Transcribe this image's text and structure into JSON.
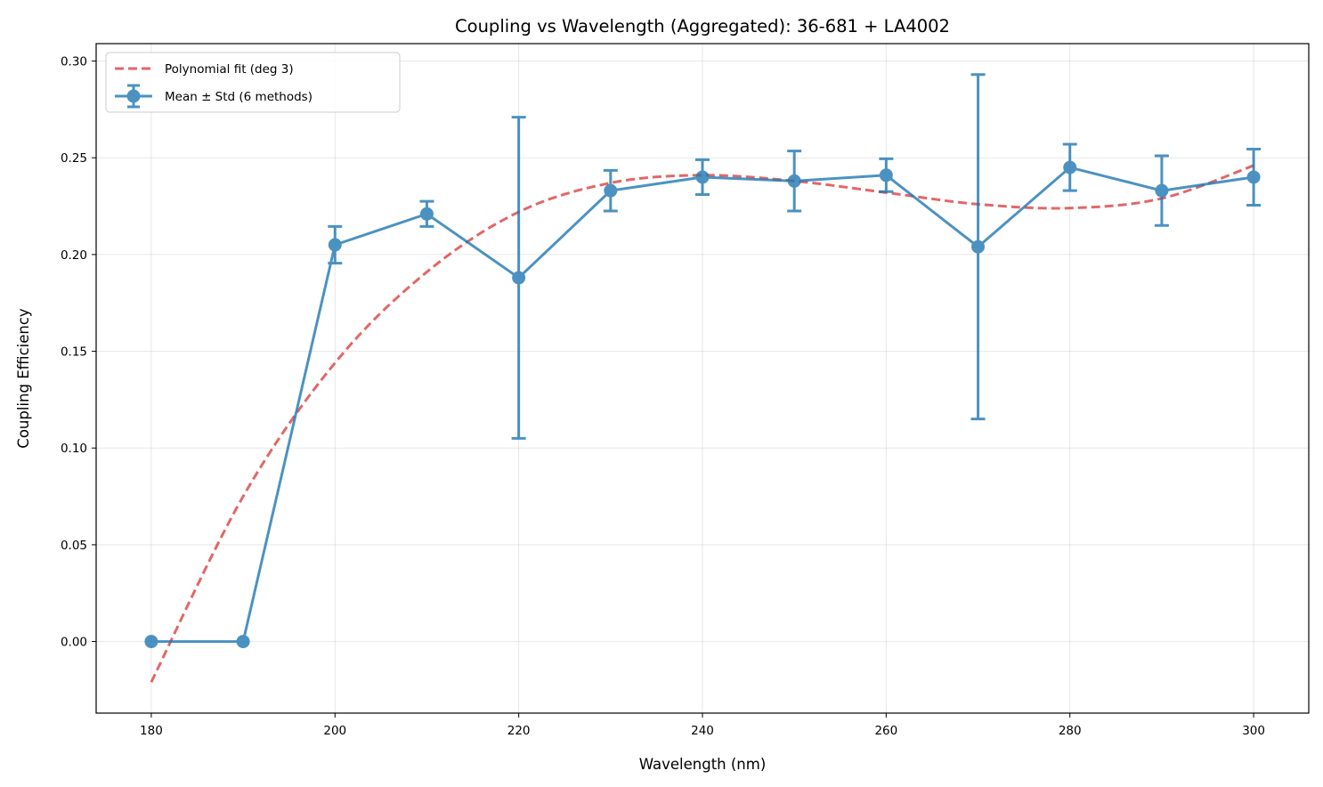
{
  "chart_data": {
    "type": "line",
    "title": "Coupling vs Wavelength (Aggregated): 36-681 + LA4002",
    "xlabel": "Wavelength (nm)",
    "ylabel": "Coupling Efficiency",
    "xlim": [
      174,
      306
    ],
    "ylim": [
      -0.037,
      0.309
    ],
    "x_ticks": [
      180,
      200,
      220,
      240,
      260,
      280,
      300
    ],
    "x_tick_labels": [
      "180",
      "200",
      "220",
      "240",
      "260",
      "280",
      "300"
    ],
    "y_ticks": [
      0.0,
      0.05,
      0.1,
      0.15,
      0.2,
      0.25,
      0.3
    ],
    "y_tick_labels": [
      "0.00",
      "0.05",
      "0.10",
      "0.15",
      "0.20",
      "0.25",
      "0.30"
    ],
    "grid": true,
    "legend_position": "top-left",
    "series": [
      {
        "name": "Mean ± Std (6 methods)",
        "style": "line-markers-errorbars",
        "color": "#1f77b4",
        "x": [
          180,
          190,
          200,
          210,
          220,
          230,
          240,
          250,
          260,
          270,
          280,
          290,
          300
        ],
        "y": [
          0.0,
          0.0,
          0.205,
          0.221,
          0.188,
          0.233,
          0.24,
          0.238,
          0.241,
          0.204,
          0.245,
          0.233,
          0.24
        ],
        "err": [
          0.0,
          0.0,
          0.0095,
          0.0065,
          0.083,
          0.0105,
          0.009,
          0.0155,
          0.0085,
          0.089,
          0.012,
          0.018,
          0.0145
        ]
      },
      {
        "name": "Polynomial fit (deg 3)",
        "style": "dashed",
        "color": "#d62728",
        "x": [
          180,
          190,
          200,
          210,
          220,
          230,
          240,
          250,
          260,
          270,
          280,
          290,
          300
        ],
        "y": [
          -0.021,
          0.075,
          0.144,
          0.191,
          0.222,
          0.237,
          0.241,
          0.238,
          0.232,
          0.226,
          0.224,
          0.229,
          0.246
        ]
      }
    ]
  }
}
